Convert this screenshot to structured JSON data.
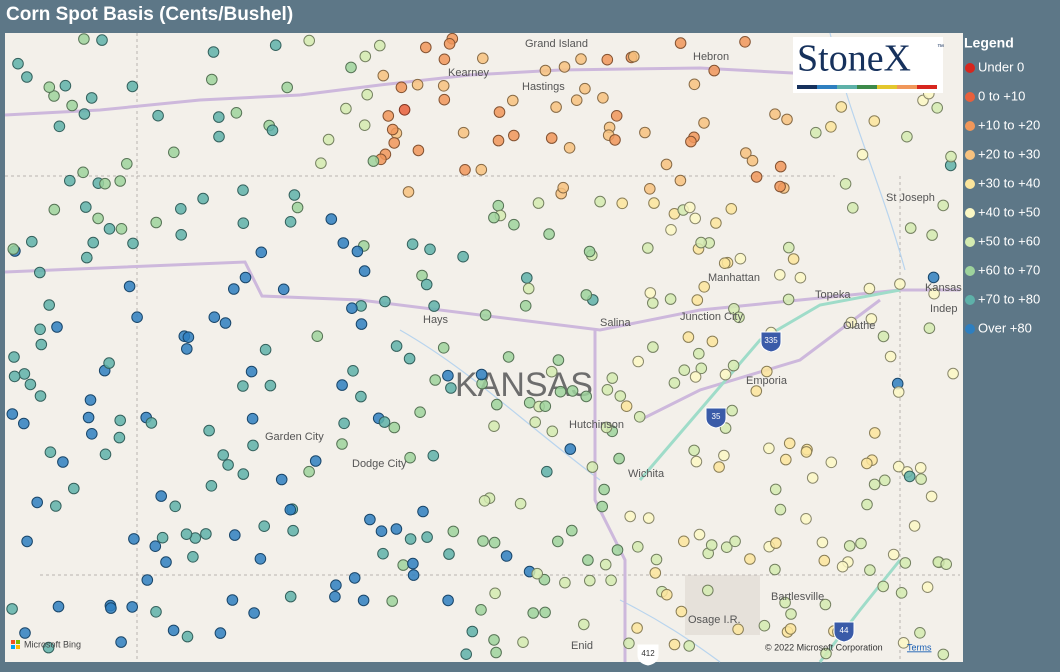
{
  "header": {
    "title": "Corn Spot Basis (Cents/Bushel)"
  },
  "legend": {
    "title": "Legend",
    "items": [
      {
        "label": "Under 0",
        "color": "#d7261e"
      },
      {
        "label": "0 to +10",
        "color": "#e8603c"
      },
      {
        "label": "+10 to +20",
        "color": "#f0975a"
      },
      {
        "label": "+20 to +30",
        "color": "#f7c27f"
      },
      {
        "label": "+30 to +40",
        "color": "#fbe59c"
      },
      {
        "label": "+40 to +50",
        "color": "#fbf8c4"
      },
      {
        "label": "+50 to +60",
        "color": "#d4ebb0"
      },
      {
        "label": "+60 to +70",
        "color": "#9ed39c"
      },
      {
        "label": "+70 to +80",
        "color": "#5eb1a9"
      },
      {
        "label": "Over +80",
        "color": "#2e7fc0"
      }
    ]
  },
  "map": {
    "state": "KANSAS",
    "places": [
      "Grand Island",
      "Kearney",
      "Hastings",
      "Hebron",
      "St Joseph",
      "Manhattan",
      "Topeka",
      "Kansas",
      "Indep",
      "Olathe",
      "Junction City",
      "Salina",
      "Hays",
      "Emporia",
      "Garden City",
      "Dodge City",
      "Hutchinson",
      "Wichita",
      "Bartlesville",
      "Osage I.R.",
      "Enid"
    ],
    "shields": [
      "335",
      "35",
      "44",
      "412"
    ]
  },
  "logo": {
    "name": "StoneX",
    "mark": "™"
  },
  "attribution": {
    "provider": "Microsoft Bing",
    "copyright": "© 2022 Microsoft Corporation",
    "terms": "Terms"
  }
}
